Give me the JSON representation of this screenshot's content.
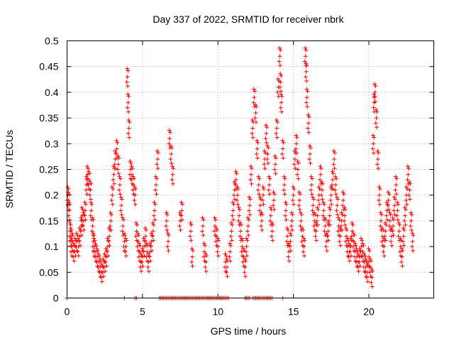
{
  "chart_data": {
    "type": "scatter",
    "title": "Day 337 of 2022, SRMTID for receiver nbrk",
    "xlabel": "GPS time / hours",
    "ylabel": "SRMTID / TECUs",
    "xlim": [
      0,
      24.3
    ],
    "ylim": [
      0,
      0.5
    ],
    "x_ticks": [
      0,
      5,
      10,
      15,
      20
    ],
    "x_tick_labels": [
      "0",
      "5",
      "10",
      "15",
      "20"
    ],
    "y_ticks": [
      0,
      0.05,
      0.1,
      0.15,
      0.2,
      0.25,
      0.3,
      0.35,
      0.4,
      0.45,
      0.5
    ],
    "y_tick_labels": [
      "0",
      "0.05",
      "0.1",
      "0.15",
      "0.2",
      "0.25",
      "0.3",
      "0.35",
      "0.4",
      "0.45",
      "0.5"
    ],
    "grid": true,
    "marker": "plus",
    "marker_color": "#ff0000",
    "series": [
      {
        "name": "SRMTID",
        "points": [
          [
            0.05,
            0.2
          ],
          [
            0.1,
            0.19
          ],
          [
            0.15,
            0.17
          ],
          [
            0.2,
            0.13
          ],
          [
            0.25,
            0.12
          ],
          [
            0.3,
            0.1
          ],
          [
            0.35,
            0.11
          ],
          [
            0.45,
            0.09
          ],
          [
            0.55,
            0.1
          ],
          [
            0.65,
            0.11
          ],
          [
            0.75,
            0.1
          ],
          [
            0.85,
            0.12
          ],
          [
            0.95,
            0.14
          ],
          [
            1.0,
            0.16
          ],
          [
            1.1,
            0.15
          ],
          [
            1.2,
            0.17
          ],
          [
            1.3,
            0.22
          ],
          [
            1.35,
            0.24
          ],
          [
            1.45,
            0.23
          ],
          [
            1.55,
            0.21
          ],
          [
            1.6,
            0.17
          ],
          [
            1.7,
            0.14
          ],
          [
            1.75,
            0.11
          ],
          [
            1.8,
            0.1
          ],
          [
            1.9,
            0.09
          ],
          [
            2.0,
            0.08
          ],
          [
            2.1,
            0.07
          ],
          [
            2.2,
            0.06
          ],
          [
            2.3,
            0.05
          ],
          [
            2.4,
            0.06
          ],
          [
            2.5,
            0.07
          ],
          [
            2.6,
            0.08
          ],
          [
            2.7,
            0.1
          ],
          [
            2.8,
            0.12
          ],
          [
            2.9,
            0.15
          ],
          [
            3.0,
            0.2
          ],
          [
            3.1,
            0.24
          ],
          [
            3.2,
            0.27
          ],
          [
            3.3,
            0.29
          ],
          [
            3.4,
            0.26
          ],
          [
            3.5,
            0.22
          ],
          [
            3.6,
            0.18
          ],
          [
            3.7,
            0.14
          ],
          [
            3.8,
            0.11
          ],
          [
            3.9,
            0.1
          ],
          [
            4.0,
            0.43
          ],
          [
            4.05,
            0.38
          ],
          [
            4.1,
            0.33
          ],
          [
            4.2,
            0.25
          ],
          [
            4.3,
            0.24
          ],
          [
            4.4,
            0.22
          ],
          [
            4.5,
            0.2
          ],
          [
            4.6,
            0.13
          ],
          [
            4.7,
            0.11
          ],
          [
            4.8,
            0.09
          ],
          [
            4.9,
            0.07
          ],
          [
            5.0,
            0.08
          ],
          [
            5.1,
            0.1
          ],
          [
            5.2,
            0.12
          ],
          [
            5.3,
            0.09
          ],
          [
            5.4,
            0.07
          ],
          [
            5.5,
            0.09
          ],
          [
            5.6,
            0.11
          ],
          [
            5.7,
            0.13
          ],
          [
            5.8,
            0.17
          ],
          [
            5.9,
            0.22
          ],
          [
            6.0,
            0.27
          ],
          [
            6.6,
            0.15
          ],
          [
            6.7,
            0.11
          ],
          [
            6.8,
            0.31
          ],
          [
            6.9,
            0.28
          ],
          [
            7.0,
            0.24
          ],
          [
            7.5,
            0.15
          ],
          [
            7.6,
            0.17
          ],
          [
            8.2,
            0.13
          ],
          [
            8.3,
            0.08
          ],
          [
            9.0,
            0.14
          ],
          [
            9.1,
            0.09
          ],
          [
            9.2,
            0.07
          ],
          [
            9.8,
            0.14
          ],
          [
            9.9,
            0.12
          ],
          [
            10.0,
            0.1
          ],
          [
            10.5,
            0.07
          ],
          [
            10.6,
            0.06
          ],
          [
            10.8,
            0.09
          ],
          [
            10.9,
            0.13
          ],
          [
            11.0,
            0.17
          ],
          [
            11.1,
            0.21
          ],
          [
            11.2,
            0.23
          ],
          [
            11.3,
            0.2
          ],
          [
            11.4,
            0.16
          ],
          [
            11.5,
            0.13
          ],
          [
            11.6,
            0.1
          ],
          [
            11.7,
            0.08
          ],
          [
            11.8,
            0.06
          ],
          [
            11.9,
            0.1
          ],
          [
            12.0,
            0.14
          ],
          [
            12.1,
            0.18
          ],
          [
            12.2,
            0.24
          ],
          [
            12.3,
            0.33
          ],
          [
            12.4,
            0.39
          ],
          [
            12.5,
            0.36
          ],
          [
            12.6,
            0.29
          ],
          [
            12.7,
            0.22
          ],
          [
            12.8,
            0.18
          ],
          [
            12.9,
            0.15
          ],
          [
            13.0,
            0.2
          ],
          [
            13.1,
            0.27
          ],
          [
            13.2,
            0.32
          ],
          [
            13.3,
            0.28
          ],
          [
            13.4,
            0.22
          ],
          [
            13.5,
            0.16
          ],
          [
            13.6,
            0.13
          ],
          [
            13.7,
            0.19
          ],
          [
            13.8,
            0.26
          ],
          [
            13.9,
            0.33
          ],
          [
            14.0,
            0.41
          ],
          [
            14.1,
            0.47
          ],
          [
            14.15,
            0.42
          ],
          [
            14.2,
            0.38
          ],
          [
            14.3,
            0.29
          ],
          [
            14.4,
            0.22
          ],
          [
            14.5,
            0.17
          ],
          [
            14.6,
            0.12
          ],
          [
            14.7,
            0.09
          ],
          [
            14.8,
            0.11
          ],
          [
            14.9,
            0.15
          ],
          [
            15.0,
            0.2
          ],
          [
            15.1,
            0.27
          ],
          [
            15.2,
            0.3
          ],
          [
            15.3,
            0.25
          ],
          [
            15.4,
            0.19
          ],
          [
            15.5,
            0.15
          ],
          [
            15.6,
            0.12
          ],
          [
            15.7,
            0.1
          ],
          [
            15.8,
            0.47
          ],
          [
            15.85,
            0.44
          ],
          [
            15.9,
            0.39
          ],
          [
            16.0,
            0.34
          ],
          [
            16.1,
            0.28
          ],
          [
            16.2,
            0.22
          ],
          [
            16.3,
            0.18
          ],
          [
            16.4,
            0.15
          ],
          [
            16.5,
            0.13
          ],
          [
            16.6,
            0.16
          ],
          [
            16.7,
            0.2
          ],
          [
            16.8,
            0.24
          ],
          [
            16.9,
            0.21
          ],
          [
            17.0,
            0.17
          ],
          [
            17.1,
            0.14
          ],
          [
            17.2,
            0.11
          ],
          [
            17.3,
            0.13
          ],
          [
            17.4,
            0.16
          ],
          [
            17.5,
            0.2
          ],
          [
            17.6,
            0.23
          ],
          [
            17.7,
            0.27
          ],
          [
            17.8,
            0.22
          ],
          [
            17.9,
            0.18
          ],
          [
            18.0,
            0.14
          ],
          [
            18.1,
            0.12
          ],
          [
            18.2,
            0.15
          ],
          [
            18.3,
            0.19
          ],
          [
            18.4,
            0.16
          ],
          [
            18.5,
            0.12
          ],
          [
            18.6,
            0.1
          ],
          [
            18.7,
            0.09
          ],
          [
            18.8,
            0.1
          ],
          [
            18.9,
            0.13
          ],
          [
            19.0,
            0.11
          ],
          [
            19.1,
            0.09
          ],
          [
            19.2,
            0.08
          ],
          [
            19.3,
            0.07
          ],
          [
            19.4,
            0.08
          ],
          [
            19.5,
            0.1
          ],
          [
            19.6,
            0.09
          ],
          [
            19.7,
            0.07
          ],
          [
            19.8,
            0.06
          ],
          [
            19.9,
            0.05
          ],
          [
            20.0,
            0.08
          ],
          [
            20.1,
            0.06
          ],
          [
            20.2,
            0.04
          ],
          [
            20.3,
            0.3
          ],
          [
            20.35,
            0.38
          ],
          [
            20.4,
            0.4
          ],
          [
            20.5,
            0.35
          ],
          [
            20.6,
            0.27
          ],
          [
            20.7,
            0.2
          ],
          [
            20.8,
            0.15
          ],
          [
            20.9,
            0.12
          ],
          [
            21.0,
            0.1
          ],
          [
            21.1,
            0.13
          ],
          [
            21.2,
            0.17
          ],
          [
            21.3,
            0.19
          ],
          [
            21.4,
            0.15
          ],
          [
            21.5,
            0.12
          ],
          [
            21.6,
            0.14
          ],
          [
            21.7,
            0.18
          ],
          [
            21.8,
            0.22
          ],
          [
            21.9,
            0.17
          ],
          [
            22.0,
            0.13
          ],
          [
            22.1,
            0.1
          ],
          [
            22.2,
            0.08
          ],
          [
            22.3,
            0.12
          ],
          [
            22.4,
            0.16
          ],
          [
            22.5,
            0.2
          ],
          [
            22.6,
            0.24
          ],
          [
            22.7,
            0.21
          ],
          [
            22.8,
            0.15
          ],
          [
            22.9,
            0.11
          ]
        ],
        "zero_points": [
          0.0,
          3.8,
          4.5,
          4.6,
          6.1,
          6.2,
          6.3,
          6.4,
          6.5,
          6.6,
          6.7,
          6.8,
          6.9,
          7.0,
          7.1,
          7.2,
          7.3,
          7.4,
          7.5,
          7.6,
          7.7,
          7.8,
          7.9,
          8.0,
          8.1,
          8.2,
          8.3,
          8.4,
          8.5,
          8.6,
          8.7,
          8.8,
          8.9,
          9.0,
          9.1,
          9.2,
          9.3,
          9.4,
          9.5,
          9.6,
          9.7,
          9.8,
          9.9,
          10.0,
          10.1,
          10.2,
          10.3,
          10.4,
          10.5,
          10.6,
          10.7,
          11.8,
          11.9,
          12.0,
          12.1,
          12.3,
          12.4,
          12.5,
          12.6,
          12.7,
          12.8,
          12.9,
          13.0,
          13.1,
          13.2,
          13.3,
          13.4,
          13.5,
          13.6,
          14.3
        ]
      }
    ]
  }
}
